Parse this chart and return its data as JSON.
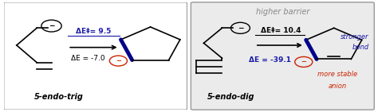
{
  "bg_white": "#ffffff",
  "bg_gray": "#ebebeb",
  "border_color": "#999999",
  "black": "#000000",
  "blue_dark": "#1a1aaa",
  "navy": "#00008b",
  "red": "#cc2200",
  "gray_text": "#888888",
  "left_panel": {
    "label": "5-endo-trig",
    "dE_act_text": "ΔE‡= 9.5",
    "dE_text": "ΔE = -7.0",
    "dE_act_color": "#1a1aaa",
    "dE_color": "#000000"
  },
  "right_panel": {
    "label": "5-endo-dig",
    "header": "higher barrier",
    "dE_act_text": "ΔE‡= 10.4",
    "dE_text": "ΔE = -39.1",
    "dE_act_color": "#000000",
    "dE_color": "#1a1aaa",
    "note1": "stronger",
    "note2": "bond",
    "note3": "more stable",
    "note4": "anion",
    "note_color1": "#1a1aaa",
    "note_color2": "#cc2200"
  }
}
